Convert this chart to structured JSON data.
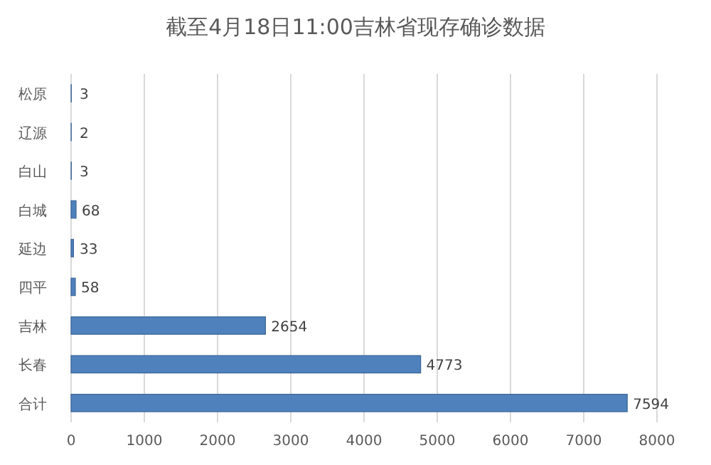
{
  "chart_data": {
    "type": "bar",
    "orientation": "horizontal",
    "title": "截至4月18日11:00吉林省现存确诊数据",
    "categories": [
      "松原",
      "辽源",
      "白山",
      "白城",
      "延边",
      "四平",
      "吉林",
      "长春",
      "合计"
    ],
    "values": [
      3,
      2,
      3,
      68,
      33,
      58,
      2654,
      4773,
      7594
    ],
    "color": "#4f81bd",
    "data_labels": true,
    "xlim": [
      0,
      8000
    ],
    "xticks": [
      0,
      1000,
      2000,
      3000,
      4000,
      5000,
      6000,
      7000,
      8000
    ],
    "grid": "x"
  }
}
